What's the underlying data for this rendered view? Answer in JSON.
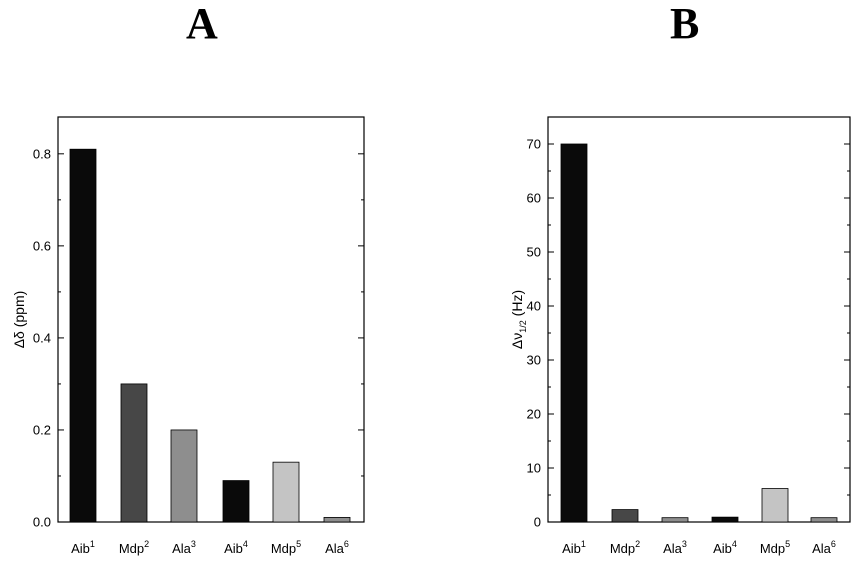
{
  "panels": {
    "a": {
      "letter": "A"
    },
    "b": {
      "letter": "B"
    }
  },
  "colors": {
    "black": "#0a0a0a",
    "dark_gray": "#474747",
    "mid_gray": "#8e8e8e",
    "light_gray": "#c4c4c4"
  },
  "chart_data": [
    {
      "type": "bar",
      "panel": "A",
      "categories": [
        {
          "base": "Aib",
          "sup": "1"
        },
        {
          "base": "Mdp",
          "sup": "2"
        },
        {
          "base": "Ala",
          "sup": "3"
        },
        {
          "base": "Aib",
          "sup": "4"
        },
        {
          "base": "Mdp",
          "sup": "5"
        },
        {
          "base": "Ala",
          "sup": "6"
        }
      ],
      "values": [
        0.81,
        0.3,
        0.2,
        0.09,
        0.13,
        0.01
      ],
      "bar_colors": [
        "black",
        "dark_gray",
        "mid_gray",
        "black",
        "light_gray",
        "mid_gray"
      ],
      "ylabel": "Δδ (ppm)",
      "ylim": [
        0,
        0.88
      ],
      "yticks": [
        0.0,
        0.2,
        0.4,
        0.6,
        0.8
      ],
      "ytick_labels": [
        "0.0",
        "0.2",
        "0.4",
        "0.6",
        "0.8"
      ],
      "grid": false
    },
    {
      "type": "bar",
      "panel": "B",
      "categories": [
        {
          "base": "Aib",
          "sup": "1"
        },
        {
          "base": "Mdp",
          "sup": "2"
        },
        {
          "base": "Ala",
          "sup": "3"
        },
        {
          "base": "Aib",
          "sup": "4"
        },
        {
          "base": "Mdp",
          "sup": "5"
        },
        {
          "base": "Ala",
          "sup": "6"
        }
      ],
      "values": [
        70,
        2.3,
        0.8,
        0.9,
        6.2,
        0.8
      ],
      "bar_colors": [
        "black",
        "dark_gray",
        "mid_gray",
        "black",
        "light_gray",
        "mid_gray"
      ],
      "ylabel": "Δν",
      "ylabel_sub": "1/2",
      "ylabel_unit": " (Hz)",
      "ylim": [
        0,
        75
      ],
      "yticks": [
        0,
        10,
        20,
        30,
        40,
        50,
        60,
        70
      ],
      "ytick_labels": [
        "0",
        "10",
        "20",
        "30",
        "40",
        "50",
        "60",
        "70"
      ],
      "grid": false
    }
  ]
}
